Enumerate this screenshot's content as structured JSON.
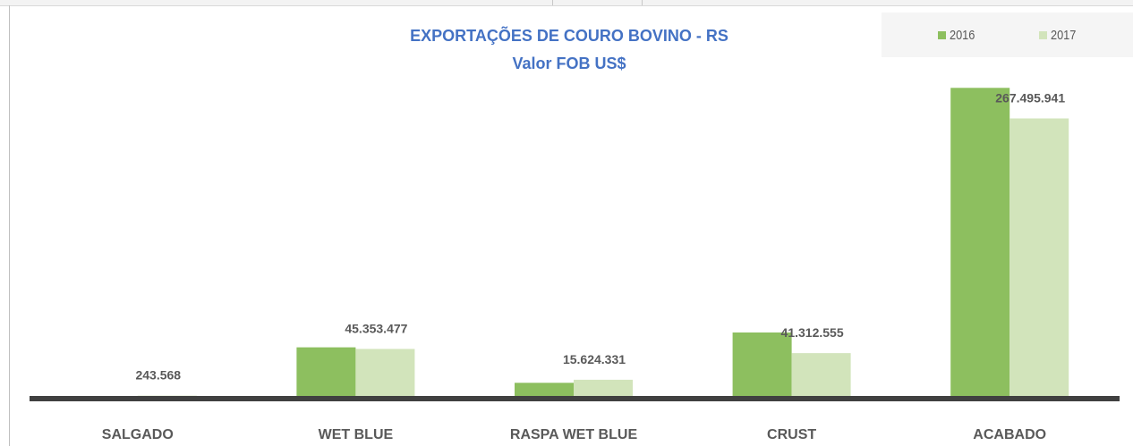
{
  "chart_data": {
    "type": "bar",
    "title": "EXPORTAÇÕES  DE COURO BOVINO  - RS",
    "subtitle": "Valor  FOB US$",
    "xlabel": "",
    "ylabel": "",
    "categories": [
      "SALGADO",
      "WET BLUE",
      "RASPA WET BLUE",
      "CRUST",
      "ACABADO"
    ],
    "series": [
      {
        "name": "2016",
        "color": "#8dbf5f",
        "values": [
          0,
          46900000,
          12700000,
          61200000,
          297000000
        ]
      },
      {
        "name": "2017",
        "color": "#d2e4bb",
        "values": [
          243568,
          45353477,
          15624331,
          41312555,
          267495941
        ]
      }
    ],
    "data_labels": [
      "243.568",
      "45.353.477",
      "15.624.331",
      "41.312.555",
      "267.495.941"
    ],
    "ylim": [
      0,
      330000000
    ],
    "grid": false,
    "legend_position": "top-right"
  }
}
